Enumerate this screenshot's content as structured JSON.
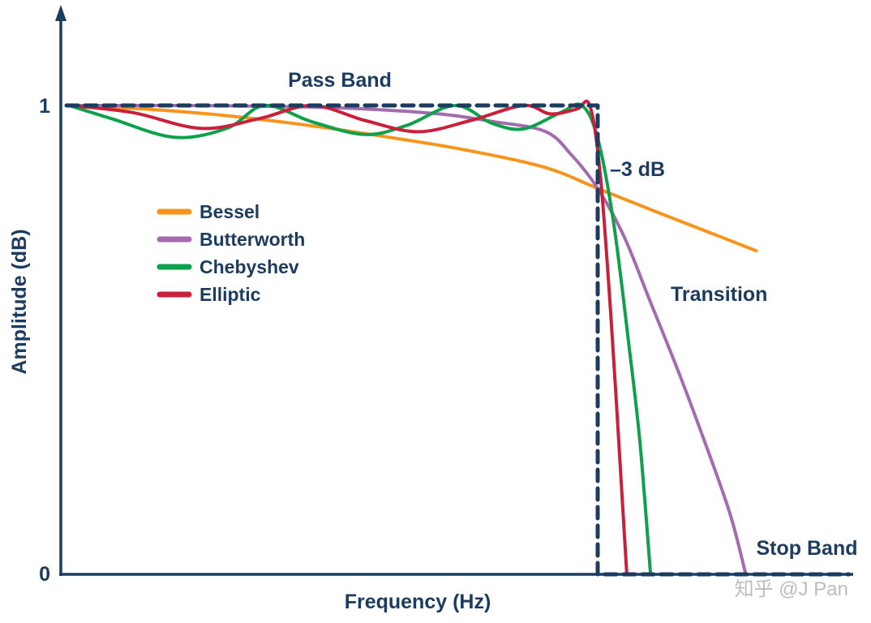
{
  "watermark": "知乎 @J Pan",
  "colors": {
    "navy": "#1B3B5F",
    "watermark_gray": "#BDBDBD",
    "background": "#FFFFFF"
  },
  "chart_data": {
    "type": "line",
    "title": "",
    "xlabel": "Frequency (Hz)",
    "ylabel": "Amplitude (dB)",
    "y_ticks": [
      "1",
      "0"
    ],
    "ylim": [
      0,
      1
    ],
    "xlim": [
      0,
      1.48
    ],
    "grid": false,
    "legend_position": "upper-left-inside",
    "annotations": {
      "pass_band": "Pass Band",
      "cutoff": "–3 dB",
      "transition": "Transition",
      "stop_band": "Stop Band"
    },
    "ideal_filter": {
      "name": "ideal brick-wall filter (dashed)",
      "color": "#1B3B5F",
      "dashed": true,
      "cutoff_x": 1.0,
      "x_end": 1.475,
      "passband_amplitude": 1,
      "stopband_amplitude": 0
    },
    "series": [
      {
        "name": "Bessel",
        "color": "#F7941D",
        "points": [
          [
            0,
            1.0
          ],
          [
            0.15,
            0.992
          ],
          [
            0.3,
            0.978
          ],
          [
            0.45,
            0.958
          ],
          [
            0.6,
            0.933
          ],
          [
            0.75,
            0.905
          ],
          [
            0.9,
            0.868
          ],
          [
            1.0,
            0.823
          ],
          [
            1.1,
            0.778
          ],
          [
            1.2,
            0.734
          ],
          [
            1.3,
            0.69
          ]
        ]
      },
      {
        "name": "Butterworth",
        "color": "#A36BB0",
        "points": [
          [
            0,
            1.0
          ],
          [
            0.2,
            1.0
          ],
          [
            0.4,
            0.998
          ],
          [
            0.55,
            0.993
          ],
          [
            0.7,
            0.982
          ],
          [
            0.8,
            0.966
          ],
          [
            0.9,
            0.945
          ],
          [
            0.95,
            0.895
          ],
          [
            1.0,
            0.823
          ],
          [
            1.05,
            0.72
          ],
          [
            1.1,
            0.58
          ],
          [
            1.15,
            0.44
          ],
          [
            1.2,
            0.29
          ],
          [
            1.25,
            0.13
          ],
          [
            1.28,
            0.0
          ]
        ]
      },
      {
        "name": "Chebyshev",
        "color": "#0FA04C",
        "points": [
          [
            0,
            1.0
          ],
          [
            0.08,
            0.972
          ],
          [
            0.2,
            0.932
          ],
          [
            0.3,
            0.952
          ],
          [
            0.37,
            1.0
          ],
          [
            0.46,
            0.965
          ],
          [
            0.56,
            0.938
          ],
          [
            0.64,
            0.958
          ],
          [
            0.73,
            1.0
          ],
          [
            0.8,
            0.962
          ],
          [
            0.86,
            0.95
          ],
          [
            0.93,
            0.985
          ],
          [
            0.97,
            1.0
          ],
          [
            1.0,
            0.93
          ],
          [
            1.03,
            0.75
          ],
          [
            1.06,
            0.48
          ],
          [
            1.08,
            0.28
          ],
          [
            1.1,
            0.0
          ]
        ]
      },
      {
        "name": "Elliptic",
        "color": "#C9203C",
        "points": [
          [
            0,
            1.0
          ],
          [
            0.12,
            0.985
          ],
          [
            0.25,
            0.951
          ],
          [
            0.36,
            0.972
          ],
          [
            0.46,
            1.0
          ],
          [
            0.56,
            0.968
          ],
          [
            0.66,
            0.944
          ],
          [
            0.76,
            0.968
          ],
          [
            0.86,
            1.0
          ],
          [
            0.91,
            0.982
          ],
          [
            0.96,
            0.992
          ],
          [
            0.985,
            1.0
          ],
          [
            1.005,
            0.85
          ],
          [
            1.025,
            0.55
          ],
          [
            1.04,
            0.28
          ],
          [
            1.055,
            0.0
          ]
        ]
      }
    ]
  }
}
